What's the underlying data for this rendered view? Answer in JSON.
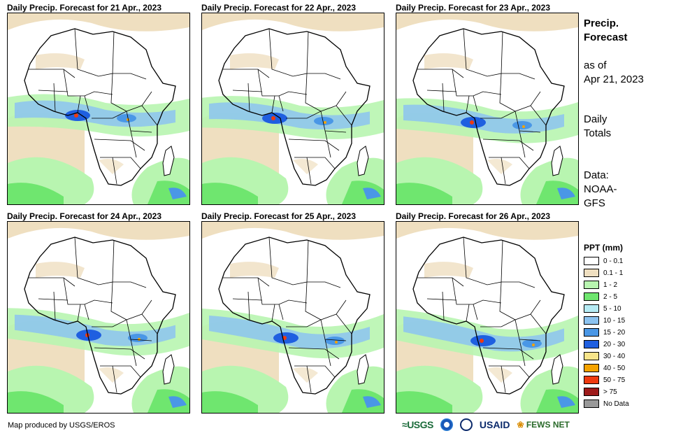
{
  "panels": [
    {
      "title": "Daily Precip. Forecast for 21 Apr., 2023"
    },
    {
      "title": "Daily Precip. Forecast for 22 Apr., 2023"
    },
    {
      "title": "Daily Precip. Forecast for 23 Apr., 2023"
    },
    {
      "title": "Daily Precip. Forecast for 24 Apr., 2023"
    },
    {
      "title": "Daily Precip. Forecast for 25 Apr., 2023"
    },
    {
      "title": "Daily Precip. Forecast for 26 Apr., 2023"
    }
  ],
  "sidebar": {
    "title_line1": "Precip.",
    "title_line2": "Forecast",
    "asof_line1": "as of",
    "asof_line2": "Apr 21, 2023",
    "totals_line1": "Daily",
    "totals_line2": "Totals",
    "data_line1": "Data:",
    "data_line2": "NOAA-",
    "data_line3": "GFS"
  },
  "legend": {
    "title": "PPT (mm)",
    "items": [
      {
        "label": "0 - 0.1",
        "color": "#ffffff"
      },
      {
        "label": "0.1 - 1",
        "color": "#efdfc0"
      },
      {
        "label": "1 - 2",
        "color": "#b8f5b0"
      },
      {
        "label": "2 - 5",
        "color": "#6fe66f"
      },
      {
        "label": "5 - 10",
        "color": "#b6ecf5"
      },
      {
        "label": "10 - 15",
        "color": "#8cc3f0"
      },
      {
        "label": "15 - 20",
        "color": "#4a97e6"
      },
      {
        "label": "20 - 30",
        "color": "#1f5fe0"
      },
      {
        "label": "30 - 40",
        "color": "#f7e58a"
      },
      {
        "label": "40 - 50",
        "color": "#f5a300"
      },
      {
        "label": "50 - 75",
        "color": "#ef3a10"
      },
      {
        "label": "> 75",
        "color": "#9e1b1b"
      },
      {
        "label": "No Data",
        "color": "#999999"
      }
    ]
  },
  "footer": {
    "credit": "Map produced by USGS/EROS",
    "logo_usgs": "USGS",
    "logo_usaid": "USAID",
    "logo_fews": "FEWS NET"
  }
}
